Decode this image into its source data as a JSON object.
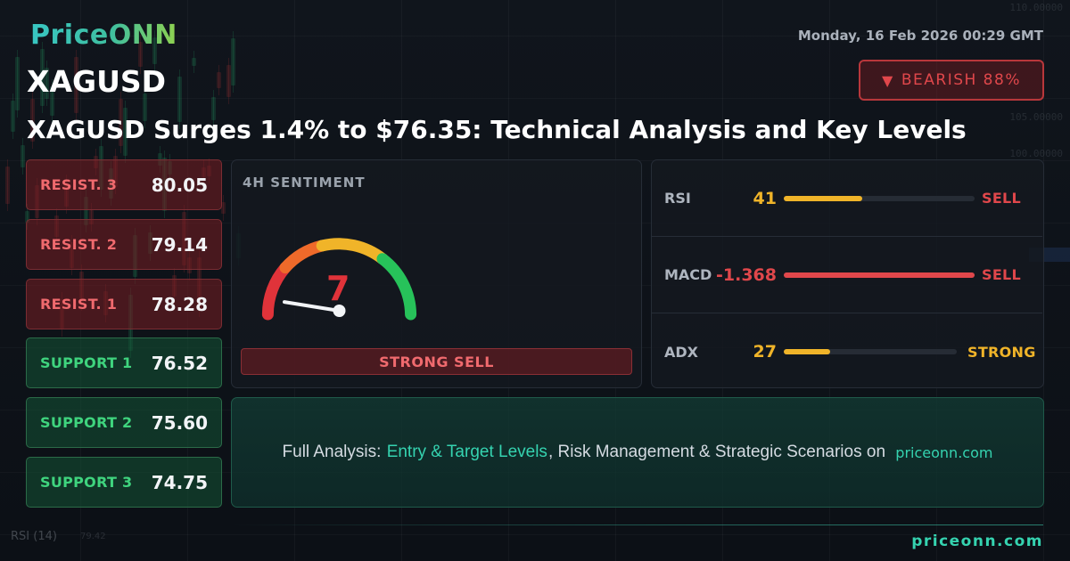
{
  "brand": {
    "logo": "PriceONN",
    "site": "priceonn.com"
  },
  "date": "Monday, 16 Feb 2026 00:29 GMT",
  "symbol": "XAGUSD",
  "bias": {
    "label": "BEARISH 88%",
    "icon": "down-triangle-icon",
    "color": "#e0474b"
  },
  "headline": "XAGUSD Surges 1.4% to $76.35: Technical Analysis and Key Levels",
  "levels": [
    {
      "label": "RESIST. 3",
      "value": "80.05",
      "kind": "resistance"
    },
    {
      "label": "RESIST. 2",
      "value": "79.14",
      "kind": "resistance"
    },
    {
      "label": "RESIST. 1",
      "value": "78.28",
      "kind": "resistance"
    },
    {
      "label": "SUPPORT 1",
      "value": "76.52",
      "kind": "support"
    },
    {
      "label": "SUPPORT 2",
      "value": "75.60",
      "kind": "support"
    },
    {
      "label": "SUPPORT 3",
      "value": "74.75",
      "kind": "support"
    }
  ],
  "sentiment": {
    "title": "4H SENTIMENT",
    "score": "7",
    "score_max": 100,
    "signal": "STRONG SELL"
  },
  "indicators": [
    {
      "name": "RSI",
      "value": "41",
      "fill": 0.41,
      "signal": "SELL",
      "color": "#f0b429",
      "signal_color": "#e0474b"
    },
    {
      "name": "MACD",
      "value": "-1.368",
      "fill": 1.0,
      "signal": "SELL",
      "color": "#e0474b",
      "signal_color": "#e0474b"
    },
    {
      "name": "ADX",
      "value": "27",
      "fill": 0.27,
      "signal": "STRONG",
      "color": "#f0b429",
      "signal_color": "#f0b429"
    }
  ],
  "cta": {
    "prefix": "Full Analysis: ",
    "highlight": "Entry & Target Levels",
    "suffix": ", Risk Management & Strategic Scenarios on ",
    "site": "priceonn.com"
  },
  "background": {
    "price_ticks": [
      "110.00000",
      "105.00000",
      "100.00000"
    ],
    "rsi_label": "RSI",
    "rsi_period": "(14)",
    "rsi_value": "79.42"
  }
}
